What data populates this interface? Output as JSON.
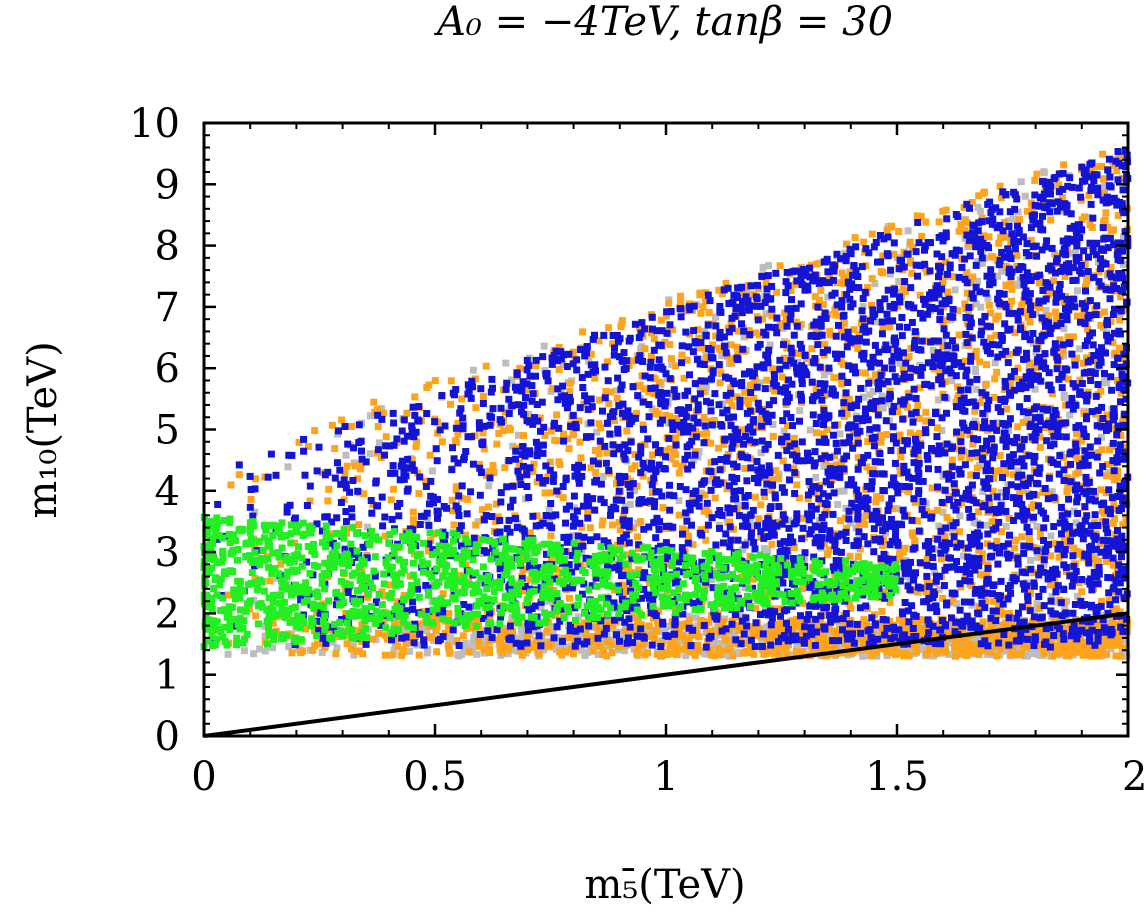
{
  "chart_data": {
    "type": "scatter",
    "title": "A₀ = −4TeV, tanβ = 30",
    "xlabel": "m₅̄(TeV)",
    "ylabel": "m₁₀(TeV)",
    "xlim": [
      0,
      2
    ],
    "ylim": [
      0,
      10
    ],
    "x_ticks": [
      "0",
      "0.5",
      "1",
      "1.5",
      "2"
    ],
    "x_tick_values": [
      0,
      0.5,
      1,
      1.5,
      2
    ],
    "y_ticks": [
      "0",
      "1",
      "2",
      "3",
      "4",
      "5",
      "6",
      "7",
      "8",
      "9",
      "10"
    ],
    "y_tick_values": [
      0,
      1,
      2,
      3,
      4,
      5,
      6,
      7,
      8,
      9,
      10
    ],
    "series": [
      {
        "name": "grey",
        "color": "#bdbdbd",
        "region": {
          "x": [
            0,
            2
          ],
          "lower": [
            1.3,
            1.3
          ],
          "upper": [
            4.5,
            9.7
          ]
        }
      },
      {
        "name": "orange",
        "color": "#ffa31a",
        "region": {
          "x": [
            0,
            2
          ],
          "lower": [
            1.3,
            1.3
          ],
          "upper": [
            4.5,
            9.7
          ]
        }
      },
      {
        "name": "blue",
        "color": "#1414d6",
        "region": {
          "x": [
            0,
            2
          ],
          "lower": [
            1.45,
            1.45
          ],
          "upper": [
            4.3,
            9.6
          ]
        }
      },
      {
        "name": "green",
        "color": "#22ee22",
        "region": {
          "x": [
            0,
            1.5
          ],
          "lower": [
            1.4,
            2.3
          ],
          "upper": [
            3.6,
            2.8
          ]
        }
      }
    ],
    "line": {
      "name": "m10 = m5bar",
      "color": "#000000",
      "x": [
        0,
        2
      ],
      "y": [
        0,
        2
      ]
    }
  }
}
